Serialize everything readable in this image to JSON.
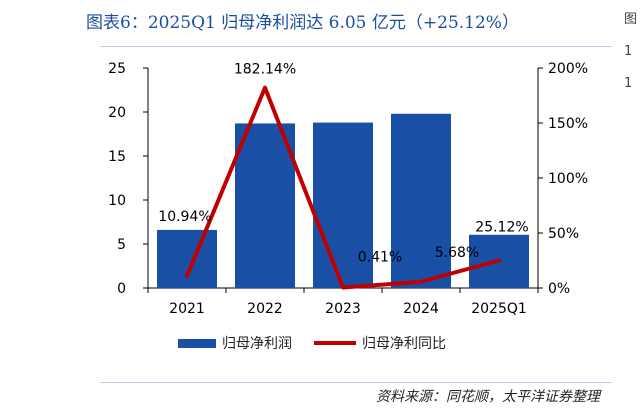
{
  "title": "图表6：2025Q1 归母净利润达 6.05 亿元（+25.12%）",
  "source": "资料来源：同花顺，太平洋证券整理",
  "edge_text": [
    "图",
    "1",
    "1"
  ],
  "colors": {
    "bar": "#1a4fa6",
    "line": "#c00000",
    "title": "#1b4fa0",
    "axis": "#000000"
  },
  "chart_data": {
    "type": "bar",
    "categories": [
      "2021",
      "2022",
      "2023",
      "2024",
      "2025Q1"
    ],
    "series": [
      {
        "name": "归母净利润",
        "type": "bar",
        "axis": "left",
        "values": [
          6.6,
          18.7,
          18.8,
          19.8,
          6.05
        ]
      },
      {
        "name": "归母净利同比",
        "type": "line",
        "axis": "right",
        "values": [
          10.94,
          182.14,
          0.41,
          5.68,
          25.12
        ],
        "labels": [
          "10.94%",
          "182.14%",
          "0.41%",
          "5.68%",
          "25.12%"
        ]
      }
    ],
    "y_left": {
      "ylim": [
        0,
        25
      ],
      "ticks": [
        "0",
        "5",
        "10",
        "15",
        "20",
        "25"
      ]
    },
    "y_right": {
      "ylim": [
        0,
        200
      ],
      "ticks": [
        "0%",
        "50%",
        "100%",
        "150%",
        "200%"
      ]
    },
    "legend_position": "bottom",
    "grid": false
  }
}
